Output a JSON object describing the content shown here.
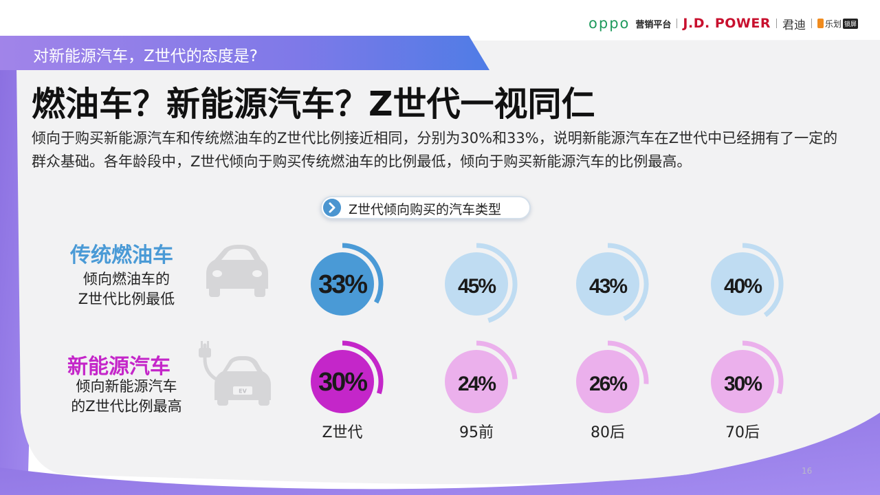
{
  "logos": {
    "oppo": "oppo",
    "platform": "营销平台",
    "jdpower": "J.D. POWER",
    "jundi": "君迪",
    "lehua": "乐划",
    "lehua_tag": "锁屏"
  },
  "header": {
    "banner": "对新能源汽车，Z世代的态度是?",
    "headline": "燃油车？新能源汽车？Z世代一视同仁",
    "description": "倾向于购买新能源汽车和传统燃油车的Z世代比例接近相同，分别为30%和33%，说明新能源汽车在Z世代中已经拥有了一定的群众基础。各年龄段中，Z世代倾向于购买传统燃油车的比例最低，倾向于购买新能源汽车的比例最高。"
  },
  "section": {
    "pill_label": "Z世代倾向购买的汽车类型"
  },
  "rows": [
    {
      "title": "传统燃油车",
      "subtitle_lines": [
        "倾向燃油车的",
        "Z世代比例最低"
      ]
    },
    {
      "title": "新能源汽车",
      "subtitle_lines": [
        "倾向新能源汽车",
        "的Z世代比例最高"
      ]
    }
  ],
  "icons": {
    "row1": "car-icon",
    "row2": "electric-car-icon",
    "pill": "chevron-right-icon",
    "ev_badge": "EV"
  },
  "chart_data": {
    "type": "donut-grid",
    "categories": [
      "Z世代",
      "95前",
      "80后",
      "70后"
    ],
    "series": [
      {
        "name": "传统燃油车",
        "values": [
          33,
          45,
          43,
          40
        ],
        "value_labels": [
          "33%",
          "45%",
          "43%",
          "40%"
        ],
        "highlight_color": "#4a9ad6",
        "light_color": "#bfdcf2"
      },
      {
        "name": "新能源汽车",
        "values": [
          30,
          24,
          26,
          30
        ],
        "value_labels": [
          "30%",
          "24%",
          "26%",
          "30%"
        ],
        "highlight_color": "#c426c9",
        "light_color": "#ebb0ec"
      }
    ],
    "highlight_category": "Z世代"
  },
  "colors": {
    "accent_blue": "#4a9ad6",
    "accent_magenta": "#c426c9",
    "banner": "#8b7ae6"
  },
  "page_number": "16"
}
